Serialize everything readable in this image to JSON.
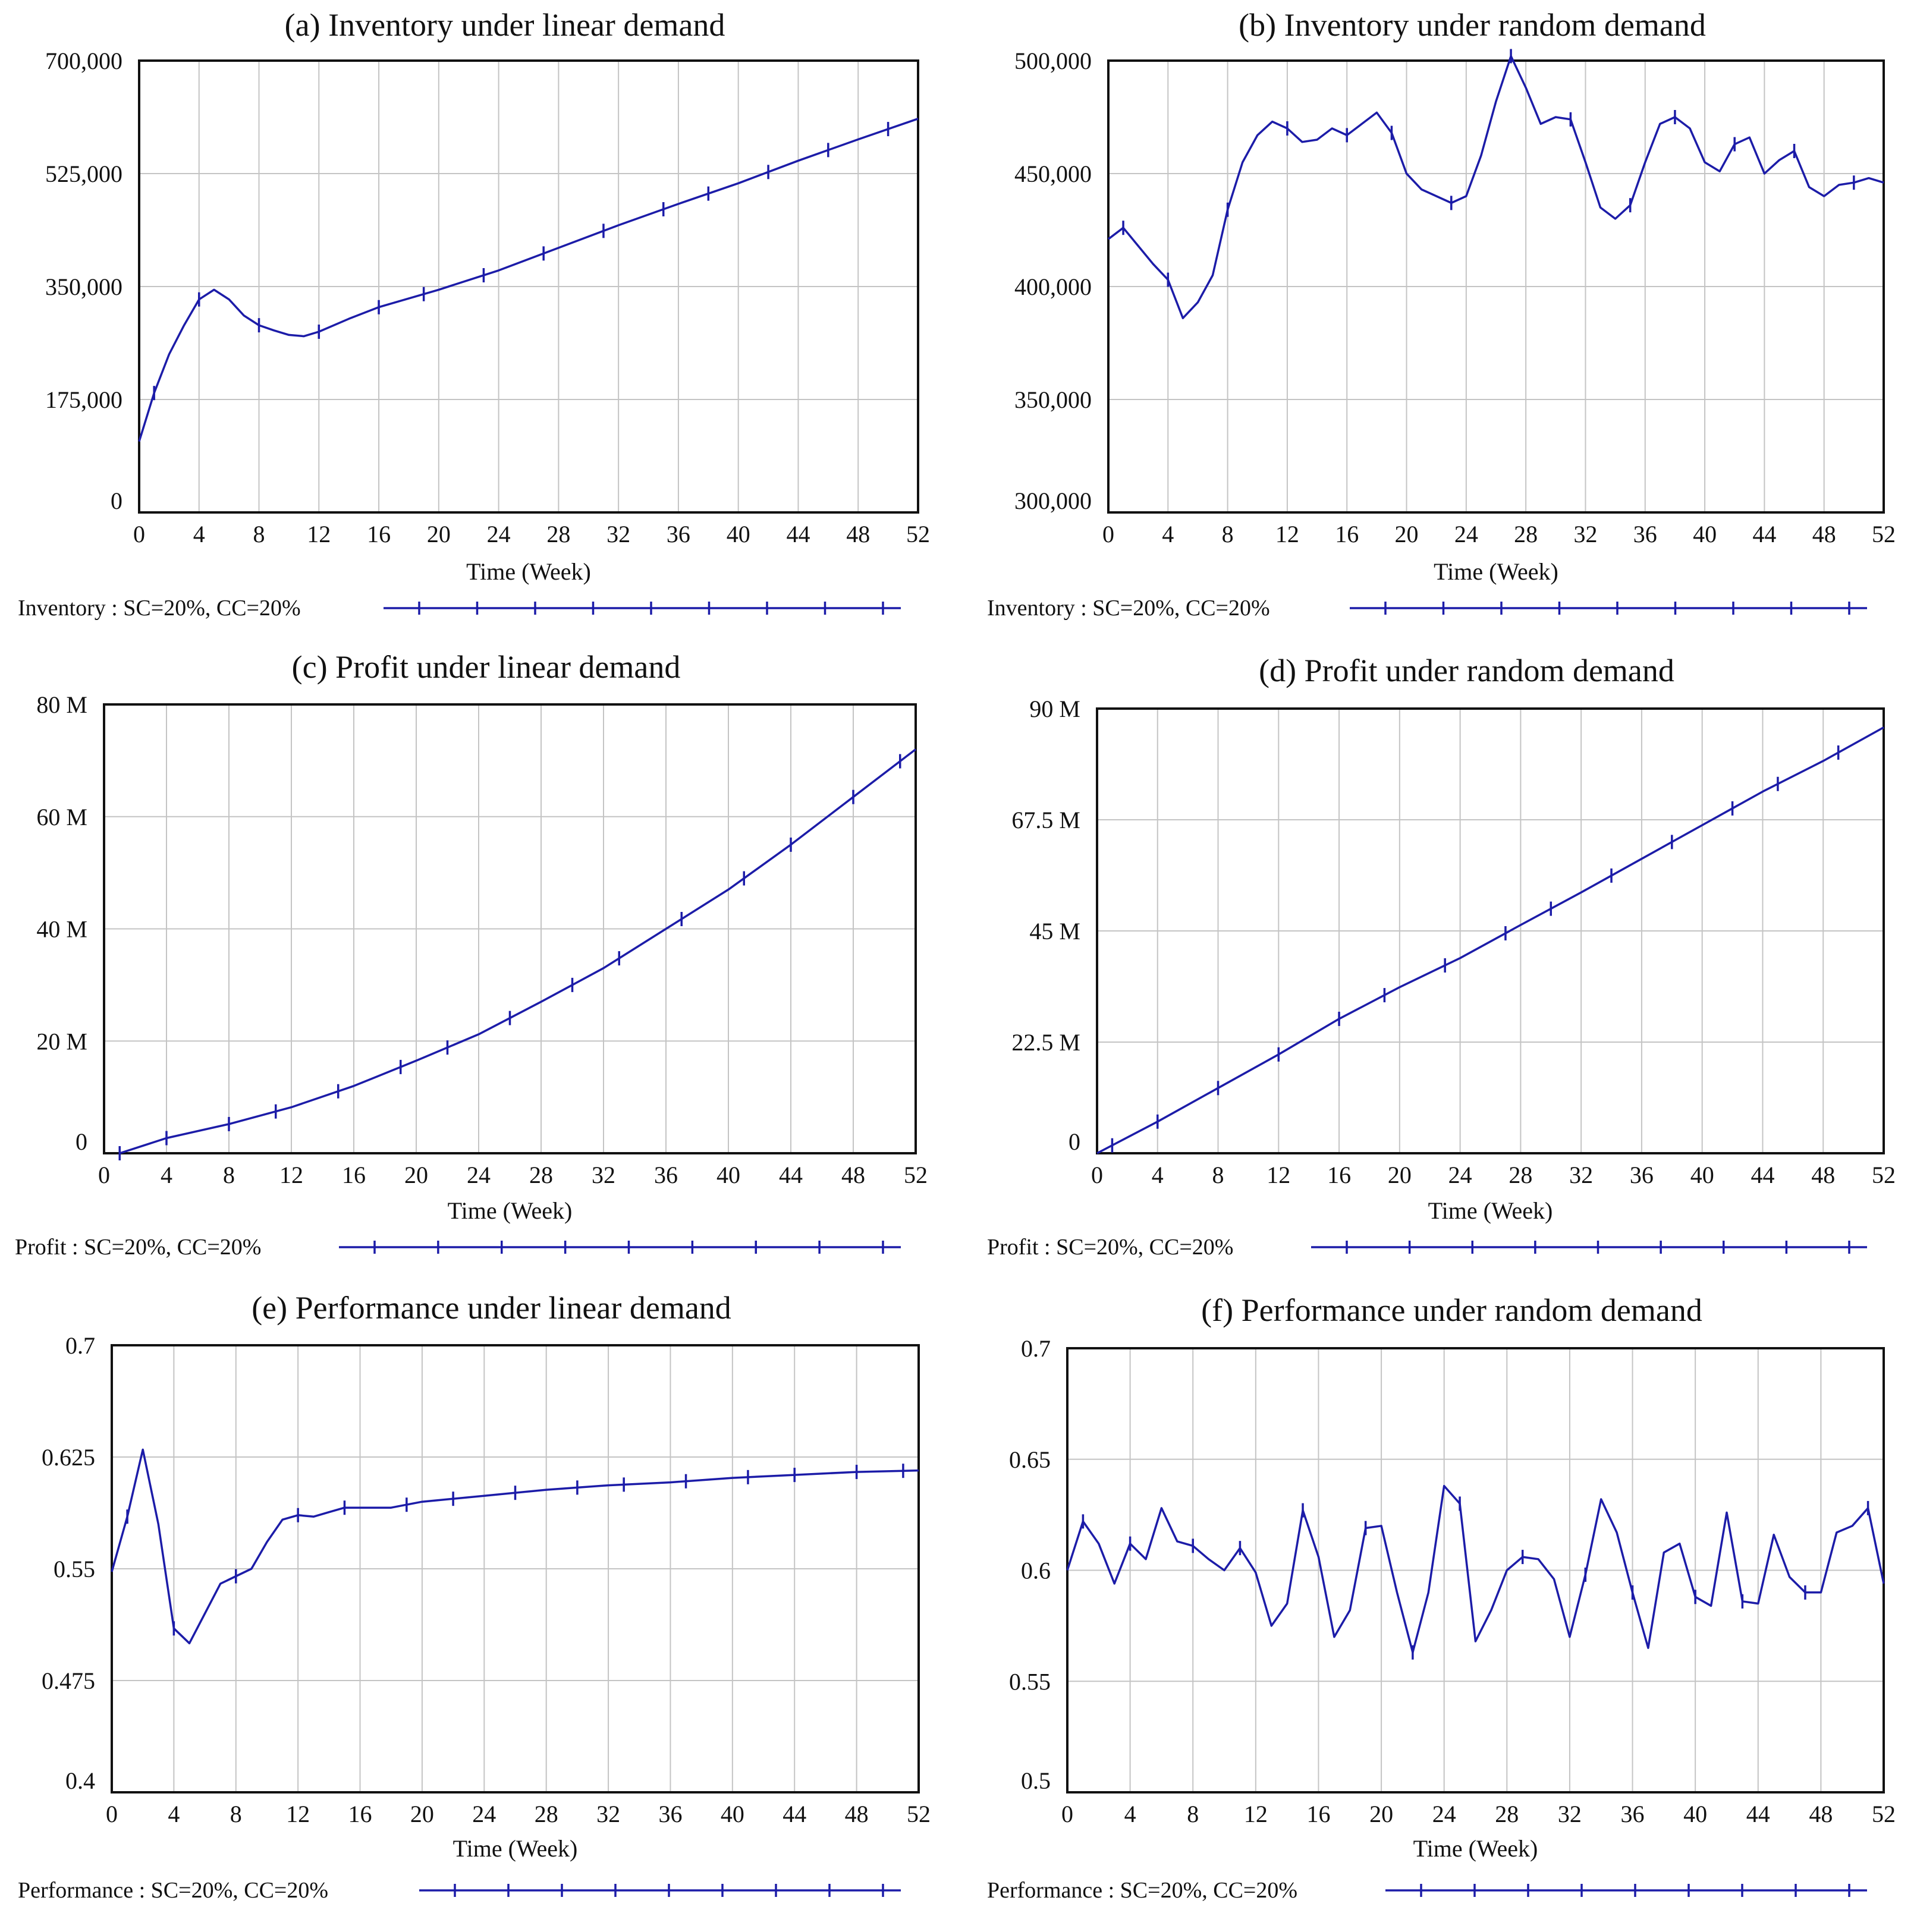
{
  "chart_data": [
    {
      "type": "line",
      "title": "(a) Inventory under linear demand",
      "xlabel": "Time (Week)",
      "ylabel": "",
      "xlim": [
        0,
        52
      ],
      "ylim": [
        0,
        700000
      ],
      "xticks": [
        0,
        4,
        8,
        12,
        16,
        20,
        24,
        28,
        32,
        36,
        40,
        44,
        48,
        52
      ],
      "xtick_labels": [
        "0",
        "4",
        "8",
        "12",
        "16",
        "20",
        "24",
        "28",
        "32",
        "36",
        "40",
        "44",
        "48",
        "52"
      ],
      "yticks": [
        0,
        175000,
        350000,
        525000,
        700000
      ],
      "ytick_labels": [
        "0",
        "175,000",
        "350,000",
        "525,000",
        "700,000"
      ],
      "legend": "Inventory : SC=20%,   CC=20%",
      "series": [
        {
          "name": "Inventory : SC=20%,   CC=20%",
          "x": [
            0,
            1,
            2,
            3,
            4,
            5,
            6,
            7,
            8,
            9,
            10,
            11,
            12,
            14,
            16,
            20,
            24,
            28,
            32,
            36,
            40,
            44,
            48,
            52
          ],
          "values": [
            110000,
            185000,
            245000,
            290000,
            330000,
            345000,
            330000,
            305000,
            290000,
            282000,
            275000,
            273000,
            280000,
            300000,
            318000,
            345000,
            375000,
            410000,
            445000,
            478000,
            510000,
            545000,
            578000,
            610000
          ],
          "markers_x": [
            1,
            4,
            8,
            12,
            16,
            19,
            23,
            27,
            31,
            35,
            38,
            42,
            46,
            50
          ]
        }
      ]
    },
    {
      "type": "line",
      "title": "(b) Inventory under random demand",
      "xlabel": "Time (Week)",
      "ylabel": "",
      "xlim": [
        0,
        52
      ],
      "ylim": [
        300000,
        500000
      ],
      "xticks": [
        0,
        4,
        8,
        12,
        16,
        20,
        24,
        28,
        32,
        36,
        40,
        44,
        48,
        52
      ],
      "xtick_labels": [
        "0",
        "4",
        "8",
        "12",
        "16",
        "20",
        "24",
        "28",
        "32",
        "36",
        "40",
        "44",
        "48",
        "52"
      ],
      "yticks": [
        300000,
        350000,
        400000,
        450000,
        500000
      ],
      "ytick_labels": [
        "300,000",
        "350,000",
        "400,000",
        "450,000",
        "500,000"
      ],
      "legend": "Inventory : SC=20%,   CC=20%",
      "series": [
        {
          "name": "Inventory : SC=20%,   CC=20%",
          "x": [
            0,
            1,
            2,
            3,
            4,
            5,
            6,
            7,
            8,
            9,
            10,
            11,
            12,
            13,
            14,
            15,
            16,
            17,
            18,
            19,
            20,
            21,
            22,
            23,
            24,
            25,
            26,
            27,
            28,
            29,
            30,
            31,
            32,
            33,
            34,
            35,
            36,
            37,
            38,
            39,
            40,
            41,
            42,
            43,
            44,
            45,
            46,
            47,
            48,
            49,
            50,
            51,
            52
          ],
          "values": [
            421000,
            426000,
            418000,
            410000,
            403000,
            386000,
            393000,
            405000,
            434000,
            455000,
            467000,
            473000,
            470000,
            464000,
            465000,
            470000,
            467000,
            472000,
            477000,
            468000,
            450000,
            443000,
            440000,
            437000,
            440000,
            458000,
            482000,
            502000,
            488000,
            472000,
            475000,
            474000,
            455000,
            435000,
            430000,
            436000,
            455000,
            472000,
            475000,
            470000,
            455000,
            451000,
            463000,
            466000,
            450000,
            456000,
            460000,
            444000,
            440000,
            445000,
            446000,
            448000,
            446000
          ],
          "markers_x": [
            1,
            4,
            8,
            12,
            16,
            19,
            23,
            27,
            31,
            35,
            38,
            42,
            46,
            50
          ]
        }
      ]
    },
    {
      "type": "line",
      "title": "(c) Profit under linear demand",
      "xlabel": "Time (Week)",
      "ylabel": "",
      "xlim": [
        0,
        52
      ],
      "ylim": [
        0,
        80000000
      ],
      "xticks": [
        0,
        4,
        8,
        12,
        16,
        20,
        24,
        28,
        32,
        36,
        40,
        44,
        48,
        52
      ],
      "xtick_labels": [
        "0",
        "4",
        "8",
        "12",
        "16",
        "20",
        "24",
        "28",
        "32",
        "36",
        "40",
        "44",
        "48",
        "52"
      ],
      "yticks": [
        0,
        20000000,
        40000000,
        60000000,
        80000000
      ],
      "ytick_labels": [
        "0",
        "20 M",
        "40 M",
        "60 M",
        "80 M"
      ],
      "legend": "Profit : SC=20%,   CC=20%",
      "series": [
        {
          "name": "Profit : SC=20%,   CC=20%",
          "x": [
            1,
            4,
            8,
            12,
            16,
            20,
            24,
            28,
            32,
            36,
            40,
            44,
            48,
            52
          ],
          "values": [
            0,
            2700000,
            5200000,
            8200000,
            12000000,
            16500000,
            21200000,
            27000000,
            33000000,
            40000000,
            47000000,
            55000000,
            63500000,
            72000000
          ],
          "markers_x": [
            1,
            4,
            8,
            11,
            15,
            19,
            22,
            26,
            30,
            33,
            37,
            41,
            44,
            48,
            51
          ]
        }
      ]
    },
    {
      "type": "line",
      "title": "(d) Profit under random demand",
      "xlabel": "Time (Week)",
      "ylabel": "",
      "xlim": [
        0,
        52
      ],
      "ylim": [
        0,
        90000000
      ],
      "xticks": [
        0,
        4,
        8,
        12,
        16,
        20,
        24,
        28,
        32,
        36,
        40,
        44,
        48,
        52
      ],
      "xtick_labels": [
        "0",
        "4",
        "8",
        "12",
        "16",
        "20",
        "24",
        "28",
        "32",
        "36",
        "40",
        "44",
        "48",
        "52"
      ],
      "yticks": [
        0,
        22500000,
        45000000,
        67500000,
        90000000
      ],
      "ytick_labels": [
        "0",
        "22.5 M",
        "45 M",
        "67.5 M",
        "90 M"
      ],
      "legend": "Profit : SC=20%,   CC=20%",
      "series": [
        {
          "name": "Profit : SC=20%,   CC=20%",
          "x": [
            0,
            4,
            8,
            12,
            16,
            20,
            24,
            28,
            32,
            36,
            40,
            44,
            48,
            52
          ],
          "values": [
            0,
            6400000,
            13200000,
            20000000,
            27200000,
            33600000,
            39500000,
            46200000,
            52800000,
            59600000,
            66400000,
            73200000,
            79400000,
            86200000
          ],
          "markers_x": [
            1,
            4,
            8,
            12,
            16,
            19,
            23,
            27,
            30,
            34,
            38,
            42,
            45,
            49
          ]
        }
      ]
    },
    {
      "type": "line",
      "title": "(e) Performance under linear demand",
      "xlabel": "Time (Week)",
      "ylabel": "",
      "xlim": [
        0,
        52
      ],
      "ylim": [
        0.4,
        0.7
      ],
      "xticks": [
        0,
        4,
        8,
        12,
        16,
        20,
        24,
        28,
        32,
        36,
        40,
        44,
        48,
        52
      ],
      "xtick_labels": [
        "0",
        "4",
        "8",
        "12",
        "16",
        "20",
        "24",
        "28",
        "32",
        "36",
        "40",
        "44",
        "48",
        "52"
      ],
      "yticks": [
        0.4,
        0.475,
        0.55,
        0.625,
        0.7
      ],
      "ytick_labels": [
        "0.4",
        "0.475",
        "0.55",
        "0.625",
        "0.7"
      ],
      "legend": "Performance : SC=20%,   CC=20%",
      "series": [
        {
          "name": "Performance : SC=20%,   CC=20%",
          "x": [
            0,
            1,
            2,
            3,
            4,
            5,
            6,
            7,
            8,
            9,
            10,
            11,
            12,
            13,
            14,
            15,
            16,
            17,
            18,
            20,
            24,
            28,
            32,
            36,
            40,
            44,
            48,
            52
          ],
          "values": [
            0.548,
            0.585,
            0.63,
            0.58,
            0.51,
            0.5,
            0.52,
            0.54,
            0.545,
            0.55,
            0.568,
            0.583,
            0.586,
            0.585,
            0.588,
            0.591,
            0.591,
            0.591,
            0.591,
            0.595,
            0.599,
            0.603,
            0.606,
            0.608,
            0.611,
            0.613,
            0.615,
            0.616
          ],
          "markers_x": [
            1,
            4,
            8,
            12,
            15,
            19,
            22,
            26,
            30,
            33,
            37,
            41,
            44,
            48,
            51
          ]
        }
      ]
    },
    {
      "type": "line",
      "title": "(f) Performance under random demand",
      "xlabel": "Time (Week)",
      "ylabel": "",
      "xlim": [
        0,
        52
      ],
      "ylim": [
        0.5,
        0.7
      ],
      "xticks": [
        0,
        4,
        8,
        12,
        16,
        20,
        24,
        28,
        32,
        36,
        40,
        44,
        48,
        52
      ],
      "xtick_labels": [
        "0",
        "4",
        "8",
        "12",
        "16",
        "20",
        "24",
        "28",
        "32",
        "36",
        "40",
        "44",
        "48",
        "52"
      ],
      "yticks": [
        0.5,
        0.55,
        0.6,
        0.65,
        0.7
      ],
      "ytick_labels": [
        "0.5",
        "0.55",
        "0.6",
        "0.65",
        "0.7"
      ],
      "legend": "Performance : SC=20%,   CC=20%",
      "series": [
        {
          "name": "Performance : SC=20%,   CC=20%",
          "x": [
            0,
            1,
            2,
            3,
            4,
            5,
            6,
            7,
            8,
            9,
            10,
            11,
            12,
            13,
            14,
            15,
            16,
            17,
            18,
            19,
            20,
            21,
            22,
            23,
            24,
            25,
            26,
            27,
            28,
            29,
            30,
            31,
            32,
            33,
            34,
            35,
            36,
            37,
            38,
            39,
            40,
            41,
            42,
            43,
            44,
            45,
            46,
            47,
            48,
            49,
            50,
            51,
            52
          ],
          "values": [
            0.6,
            0.622,
            0.612,
            0.594,
            0.612,
            0.605,
            0.628,
            0.613,
            0.611,
            0.605,
            0.6,
            0.61,
            0.599,
            0.575,
            0.585,
            0.627,
            0.606,
            0.57,
            0.582,
            0.619,
            0.62,
            0.59,
            0.563,
            0.59,
            0.638,
            0.63,
            0.568,
            0.582,
            0.6,
            0.606,
            0.605,
            0.596,
            0.57,
            0.598,
            0.632,
            0.617,
            0.59,
            0.565,
            0.608,
            0.612,
            0.588,
            0.584,
            0.626,
            0.586,
            0.585,
            0.616,
            0.597,
            0.59,
            0.59,
            0.617,
            0.62,
            0.628,
            0.594
          ],
          "markers_x": [
            1,
            4,
            8,
            11,
            15,
            19,
            22,
            25,
            29,
            33,
            36,
            40,
            43,
            47,
            51
          ]
        }
      ]
    }
  ]
}
